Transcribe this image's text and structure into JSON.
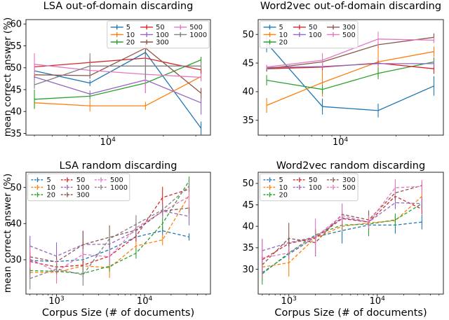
{
  "figure": {
    "ylabel": "mean correct answer (%)",
    "xlabel": "Corpus Size (# of documents)",
    "background": "#ffffff",
    "axis_color": "#262626",
    "legend_border": "#cccccc"
  },
  "chart_data": [
    {
      "type": "line",
      "title": "LSA out-of-domain discarding",
      "linestyle": "solid",
      "xscale": "log",
      "grid": false,
      "legend_position": "upper right",
      "x": [
        4000,
        8000,
        16000,
        32000
      ],
      "xlim": [
        3600,
        36000
      ],
      "xticks": [
        {
          "value": 10000,
          "base": "10",
          "exp": "4"
        }
      ],
      "ylim": [
        34.6,
        61.0
      ],
      "yticks": [
        35,
        40,
        45,
        50,
        55,
        60
      ],
      "series": [
        {
          "name": "5",
          "color": "#1f77b4",
          "values": [
            49.3,
            46.5,
            53.5,
            36.2
          ],
          "errs": [
            0.8,
            0.7,
            0.9,
            1.5
          ]
        },
        {
          "name": "10",
          "color": "#ff7f0e",
          "values": [
            42.0,
            41.3,
            41.3,
            48.0
          ],
          "errs": [
            1.2,
            1.3,
            0.9,
            0.8
          ]
        },
        {
          "name": "20",
          "color": "#2ca02c",
          "values": [
            42.8,
            43.5,
            46.5,
            51.8
          ],
          "errs": [
            2.2,
            0.8,
            0.8,
            0.7
          ]
        },
        {
          "name": "50",
          "color": "#d62728",
          "values": [
            50.2,
            51.2,
            52.2,
            49.5
          ],
          "errs": [
            0.8,
            0.7,
            0.6,
            0.9
          ]
        },
        {
          "name": "100",
          "color": "#9467bd",
          "values": [
            47.9,
            44.0,
            47.2,
            42.0
          ],
          "errs": [
            0.9,
            0.8,
            3.0,
            2.7
          ]
        },
        {
          "name": "300",
          "color": "#8c564b",
          "values": [
            48.4,
            48.2,
            54.5,
            44.2
          ],
          "errs": [
            0.8,
            0.7,
            1.5,
            1.2
          ]
        },
        {
          "name": "500",
          "color": "#e377c2",
          "values": [
            50.8,
            49.4,
            48.5,
            47.8
          ],
          "errs": [
            2.5,
            0.8,
            4.3,
            0.9
          ]
        },
        {
          "name": "1000",
          "color": "#7f7f7f",
          "values": [
            46.1,
            50.4,
            50.4,
            50.4
          ],
          "errs": [
            0.9,
            2.9,
            2.9,
            0.8
          ]
        }
      ]
    },
    {
      "type": "line",
      "title": "Word2vec out-of-domain discarding",
      "linestyle": "solid",
      "xscale": "log",
      "grid": false,
      "legend_position": "upper left",
      "x": [
        4000,
        8000,
        16000,
        32000
      ],
      "xlim": [
        3600,
        36000
      ],
      "xticks": [
        {
          "value": 10000,
          "base": "10",
          "exp": "4"
        }
      ],
      "ylim": [
        32.4,
        52.6
      ],
      "yticks": [
        35,
        40,
        45,
        50
      ],
      "series": [
        {
          "name": "5",
          "color": "#1f77b4",
          "values": [
            48.5,
            37.4,
            36.7,
            41.0
          ],
          "errs": [
            1.6,
            1.4,
            1.2,
            1.7
          ]
        },
        {
          "name": "10",
          "color": "#ff7f0e",
          "values": [
            37.6,
            41.6,
            45.2,
            47.0
          ],
          "errs": [
            1.3,
            2.5,
            2.5,
            0.9
          ]
        },
        {
          "name": "20",
          "color": "#2ca02c",
          "values": [
            42.0,
            40.4,
            43.2,
            45.2
          ],
          "errs": [
            0.9,
            0.8,
            1.0,
            0.8
          ]
        },
        {
          "name": "50",
          "color": "#d62728",
          "values": [
            44.0,
            44.3,
            45.0,
            44.0
          ],
          "errs": [
            0.5,
            0.5,
            0.5,
            0.9
          ]
        },
        {
          "name": "100",
          "color": "#9467bd",
          "values": [
            44.2,
            44.4,
            44.9,
            44.9
          ],
          "errs": [
            0.5,
            0.5,
            0.4,
            0.5
          ]
        },
        {
          "name": "300",
          "color": "#8c564b",
          "values": [
            44.0,
            45.2,
            48.2,
            49.5
          ],
          "errs": [
            0.5,
            0.6,
            0.5,
            0.7
          ]
        },
        {
          "name": "500",
          "color": "#e377c2",
          "values": [
            44.3,
            45.5,
            49.2,
            49.0
          ],
          "errs": [
            0.4,
            1.2,
            1.3,
            0.5
          ]
        }
      ]
    },
    {
      "type": "line",
      "title": "LSA random discarding",
      "linestyle": "dashed",
      "xscale": "log",
      "grid": false,
      "legend_position": "upper left",
      "x": [
        500,
        1000,
        2000,
        4000,
        8000,
        16000,
        32000
      ],
      "xlim": [
        450,
        56000
      ],
      "xticks": [
        {
          "value": 1000,
          "base": "10",
          "exp": "3"
        },
        {
          "value": 10000,
          "base": "10",
          "exp": "4"
        }
      ],
      "ylim": [
        20.5,
        54.2
      ],
      "yticks": [
        30,
        40,
        50
      ],
      "series": [
        {
          "name": "5",
          "color": "#1f77b4",
          "values": [
            29.8,
            29.5,
            30.0,
            32.8,
            36.3,
            38.0,
            36.3
          ],
          "errs": [
            1.5,
            1.2,
            1.0,
            1.2,
            1.0,
            1.2,
            1.0
          ]
        },
        {
          "name": "10",
          "color": "#ff7f0e",
          "values": [
            26.5,
            26.5,
            28.3,
            27.8,
            33.8,
            35.5,
            47.8
          ],
          "errs": [
            1.5,
            2.8,
            1.5,
            2.8,
            1.2,
            1.5,
            1.5
          ]
        },
        {
          "name": "20",
          "color": "#2ca02c",
          "values": [
            27.0,
            26.8,
            26.2,
            28.2,
            31.8,
            40.0,
            51.8
          ],
          "errs": [
            1.0,
            1.2,
            1.0,
            1.5,
            1.5,
            2.0,
            1.2
          ]
        },
        {
          "name": "50",
          "color": "#d62728",
          "values": [
            29.5,
            28.0,
            28.5,
            31.0,
            36.5,
            47.2,
            49.5
          ],
          "errs": [
            1.5,
            1.5,
            1.2,
            1.5,
            1.5,
            3.0,
            1.5
          ]
        },
        {
          "name": "100",
          "color": "#9467bd",
          "values": [
            33.8,
            31.0,
            34.2,
            34.3,
            38.0,
            43.5,
            42.0
          ],
          "errs": [
            2.8,
            3.8,
            3.8,
            1.5,
            2.0,
            1.5,
            2.5
          ]
        },
        {
          "name": "300",
          "color": "#8c564b",
          "values": [
            30.8,
            29.4,
            34.2,
            36.2,
            38.2,
            43.5,
            44.3
          ],
          "errs": [
            1.5,
            1.5,
            3.8,
            3.3,
            2.0,
            1.5,
            1.5
          ]
        },
        {
          "name": "500",
          "color": "#e377c2",
          "values": [
            30.2,
            26.7,
            31.5,
            30.8,
            38.8,
            43.3,
            47.5
          ],
          "errs": [
            3.0,
            3.3,
            1.5,
            2.5,
            1.5,
            1.8,
            3.0
          ]
        },
        {
          "name": "1000",
          "color": "#7f7f7f",
          "values": [
            24.8,
            27.5,
            25.8,
            35.8,
            39.8,
            43.8,
            50.3
          ],
          "errs": [
            3.0,
            1.5,
            3.0,
            1.5,
            2.5,
            1.5,
            1.5
          ]
        }
      ]
    },
    {
      "type": "line",
      "title": "Word2vec random discarding",
      "linestyle": "dashed",
      "xscale": "log",
      "grid": false,
      "legend_position": "upper left",
      "x": [
        500,
        1000,
        2000,
        4000,
        8000,
        16000,
        32000
      ],
      "xlim": [
        450,
        56000
      ],
      "xticks": [
        {
          "value": 1000,
          "base": "10",
          "exp": "3"
        },
        {
          "value": 10000,
          "base": "10",
          "exp": "4"
        }
      ],
      "ylim": [
        24.2,
        52.6
      ],
      "yticks": [
        30,
        35,
        40,
        45,
        50
      ],
      "series": [
        {
          "name": "5",
          "color": "#1f77b4",
          "values": [
            29.2,
            33.5,
            37.5,
            39.0,
            40.3,
            40.3,
            41.0
          ],
          "errs": [
            1.2,
            1.0,
            0.8,
            3.0,
            1.0,
            2.0,
            1.7
          ]
        },
        {
          "name": "10",
          "color": "#ff7f0e",
          "values": [
            30.5,
            31.5,
            37.3,
            40.0,
            40.8,
            41.3,
            47.0
          ],
          "errs": [
            2.3,
            3.2,
            1.0,
            1.2,
            1.5,
            1.2,
            1.5
          ]
        },
        {
          "name": "20",
          "color": "#2ca02c",
          "values": [
            28.9,
            33.8,
            38.0,
            40.3,
            40.5,
            41.5,
            45.3
          ],
          "errs": [
            2.5,
            1.5,
            1.2,
            1.0,
            2.8,
            1.5,
            1.0
          ]
        },
        {
          "name": "50",
          "color": "#d62728",
          "values": [
            32.2,
            36.0,
            37.3,
            41.8,
            41.0,
            47.0,
            44.0
          ],
          "errs": [
            1.0,
            1.5,
            1.5,
            1.5,
            1.2,
            1.0,
            1.2
          ]
        },
        {
          "name": "100",
          "color": "#9467bd",
          "values": [
            34.3,
            36.2,
            37.5,
            42.0,
            41.0,
            45.5,
            45.3
          ],
          "errs": [
            2.7,
            1.2,
            1.0,
            1.5,
            1.0,
            1.5,
            1.5
          ]
        },
        {
          "name": "300",
          "color": "#8c564b",
          "values": [
            31.0,
            37.2,
            36.2,
            42.8,
            41.5,
            47.8,
            49.5
          ],
          "errs": [
            1.5,
            3.6,
            3.2,
            2.5,
            2.2,
            1.5,
            1.0
          ]
        },
        {
          "name": "500",
          "color": "#e377c2",
          "values": [
            32.6,
            33.8,
            37.5,
            42.5,
            41.0,
            49.0,
            49.3
          ],
          "errs": [
            4.5,
            1.5,
            4.3,
            2.8,
            1.5,
            2.0,
            1.5
          ]
        }
      ]
    }
  ]
}
